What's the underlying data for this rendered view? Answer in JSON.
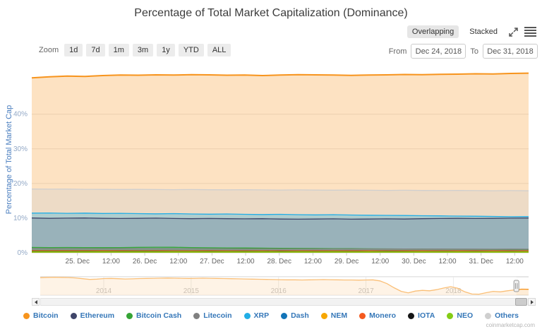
{
  "title": "Percentage of Total Market Capitalization (Dominance)",
  "toolbar": {
    "overlapping_label": "Overlapping",
    "stacked_label": "Stacked",
    "expand_icon": "expand-arrows",
    "menu_icon": "hamburger-menu"
  },
  "zoom_controls": {
    "label": "Zoom",
    "buttons": [
      "1d",
      "7d",
      "1m",
      "3m",
      "1y",
      "YTD",
      "ALL"
    ]
  },
  "date_range": {
    "from_label": "From",
    "from_value": "Dec 24, 2018",
    "to_label": "To",
    "to_value": "Dec 31, 2018"
  },
  "watermark": "coinmarketcap.com",
  "chart_data": {
    "type": "area",
    "mode": "overlapping",
    "title": "Percentage of Total Market Capitalization (Dominance)",
    "ylabel": "Percentage of Total Market Cap",
    "unit": "%",
    "ylim": [
      0,
      54
    ],
    "grid": true,
    "legend_position": "bottom",
    "ytick_values": [
      0,
      10,
      20,
      30,
      40
    ],
    "ytick_labels": [
      "0%",
      "10%",
      "20%",
      "30%",
      "40%"
    ],
    "xtick_labels": [
      "25. Dec",
      "12:00",
      "26. Dec",
      "12:00",
      "27. Dec",
      "12:00",
      "28. Dec",
      "12:00",
      "29. Dec",
      "12:00",
      "30. Dec",
      "12:00",
      "31. Dec",
      "12:00"
    ],
    "series": [
      {
        "name": "Bitcoin",
        "color": "#f7941d",
        "values": [
          50.5,
          50.8,
          51.0,
          50.9,
          51.15,
          51.3,
          51.25,
          51.35,
          51.3,
          51.4,
          51.35,
          51.25,
          51.3,
          51.15,
          51.3,
          51.4,
          51.35,
          51.3,
          51.2,
          51.3,
          51.35,
          51.45,
          51.4,
          51.5,
          51.55,
          51.65,
          51.6,
          51.75,
          51.85
        ]
      },
      {
        "name": "Ethereum",
        "color": "#3f4569",
        "values": [
          10.05,
          9.95,
          10.0,
          10.05,
          9.95,
          9.9,
          9.95,
          10.0,
          9.9,
          9.85,
          9.9,
          9.85,
          9.8,
          9.85,
          9.75,
          9.7,
          9.75,
          9.8,
          9.7,
          9.75,
          9.8,
          9.75,
          9.85,
          9.9,
          9.95,
          9.9,
          9.95,
          10.0,
          10.05
        ]
      },
      {
        "name": "Bitcoin Cash",
        "color": "#35a435",
        "values": [
          1.55,
          1.5,
          1.52,
          1.5,
          1.48,
          1.5,
          1.56,
          1.62,
          1.58,
          1.5,
          1.45,
          1.4,
          1.38,
          1.34,
          1.3,
          1.27,
          1.24,
          1.21,
          1.18,
          1.15,
          1.12,
          1.1,
          1.07,
          1.05,
          1.02,
          1.0,
          0.97,
          0.95,
          0.93
        ]
      },
      {
        "name": "Litecoin",
        "color": "#808080",
        "values": [
          1.18,
          1.17,
          1.16,
          1.17,
          1.15,
          1.16,
          1.14,
          1.15,
          1.13,
          1.14,
          1.12,
          1.13,
          1.11,
          1.12,
          1.1,
          1.11,
          1.09,
          1.1,
          1.08,
          1.09,
          1.07,
          1.08,
          1.06,
          1.07,
          1.05,
          1.06,
          1.04,
          1.05,
          1.03
        ]
      },
      {
        "name": "XRP",
        "color": "#22aee6",
        "values": [
          11.45,
          11.5,
          11.4,
          11.45,
          11.35,
          11.4,
          11.3,
          11.25,
          11.3,
          11.2,
          11.15,
          11.2,
          11.1,
          11.05,
          11.1,
          11.0,
          10.95,
          11.0,
          10.9,
          10.85,
          10.8,
          10.75,
          10.7,
          10.65,
          10.6,
          10.55,
          10.5,
          10.42,
          10.48
        ]
      },
      {
        "name": "Dash",
        "color": "#1274b8",
        "values": [
          0.5,
          0.5,
          0.49,
          0.5,
          0.49,
          0.49,
          0.48,
          0.49,
          0.48,
          0.48,
          0.47,
          0.48,
          0.47,
          0.47,
          0.46,
          0.47,
          0.46,
          0.46,
          0.45,
          0.46,
          0.45,
          0.45,
          0.44,
          0.45,
          0.44,
          0.45,
          0.44,
          0.44,
          0.45
        ]
      },
      {
        "name": "NEM",
        "color": "#f7a700",
        "values": [
          0.34,
          0.34,
          0.33,
          0.34,
          0.34,
          0.33,
          0.34,
          0.33,
          0.34,
          0.34,
          0.33,
          0.34,
          0.33,
          0.34,
          0.33,
          0.34,
          0.33,
          0.34,
          0.33,
          0.34,
          0.33,
          0.33,
          0.34,
          0.33,
          0.34,
          0.33,
          0.34,
          0.33,
          0.34
        ]
      },
      {
        "name": "Monero",
        "color": "#f4591e",
        "values": [
          0.62,
          0.62,
          0.61,
          0.62,
          0.61,
          0.61,
          0.6,
          0.61,
          0.6,
          0.6,
          0.61,
          0.6,
          0.6,
          0.59,
          0.6,
          0.59,
          0.59,
          0.6,
          0.59,
          0.58,
          0.59,
          0.58,
          0.58,
          0.59,
          0.58,
          0.58,
          0.57,
          0.58,
          0.58
        ]
      },
      {
        "name": "IOTA",
        "color": "#151515",
        "values": [
          0.44,
          0.44,
          0.43,
          0.44,
          0.43,
          0.43,
          0.44,
          0.43,
          0.43,
          0.42,
          0.43,
          0.42,
          0.42,
          0.43,
          0.42,
          0.42,
          0.41,
          0.42,
          0.41,
          0.41,
          0.42,
          0.41,
          0.41,
          0.4,
          0.41,
          0.4,
          0.4,
          0.41,
          0.4
        ]
      },
      {
        "name": "NEO",
        "color": "#84cc16",
        "values": [
          0.31,
          0.31,
          0.3,
          0.31,
          0.3,
          0.31,
          0.3,
          0.3,
          0.31,
          0.3,
          0.3,
          0.31,
          0.3,
          0.3,
          0.29,
          0.3,
          0.29,
          0.3,
          0.29,
          0.29,
          0.3,
          0.29,
          0.29,
          0.3,
          0.29,
          0.29,
          0.28,
          0.29,
          0.29
        ]
      },
      {
        "name": "Others",
        "color": "#cfcfcf",
        "values": [
          18.4,
          18.35,
          18.38,
          18.32,
          18.3,
          18.27,
          18.3,
          18.25,
          18.22,
          18.26,
          18.2,
          18.17,
          18.2,
          18.15,
          18.12,
          18.16,
          18.1,
          18.07,
          18.1,
          18.05,
          18.02,
          18.06,
          18.0,
          17.97,
          18.0,
          17.95,
          17.92,
          17.96,
          17.9
        ]
      }
    ],
    "navigator": {
      "series": "Bitcoin",
      "color": "#f7941d",
      "year_labels": [
        "2014",
        "2015",
        "2016",
        "2017",
        "2018"
      ],
      "values": [
        94,
        95,
        95.5,
        95,
        94.5,
        93,
        90,
        87.5,
        88.5,
        90.5,
        91,
        90,
        89,
        89.5,
        90.5,
        91,
        91.5,
        92,
        92.5,
        92,
        91.5,
        91,
        91.5,
        92,
        91.5,
        91,
        90.5,
        90,
        89.5,
        89,
        88.5,
        88,
        87.5,
        87,
        86.5,
        86,
        85.8,
        85.5,
        86,
        86.5,
        87,
        86.5,
        86,
        85.5,
        85.3,
        85,
        85.5,
        85.8,
        82,
        72,
        57,
        44,
        38.5,
        45,
        47.5,
        46,
        50,
        56,
        61,
        55,
        42,
        34,
        33.5,
        39,
        44,
        42,
        46,
        49,
        52,
        51.4
      ]
    }
  }
}
